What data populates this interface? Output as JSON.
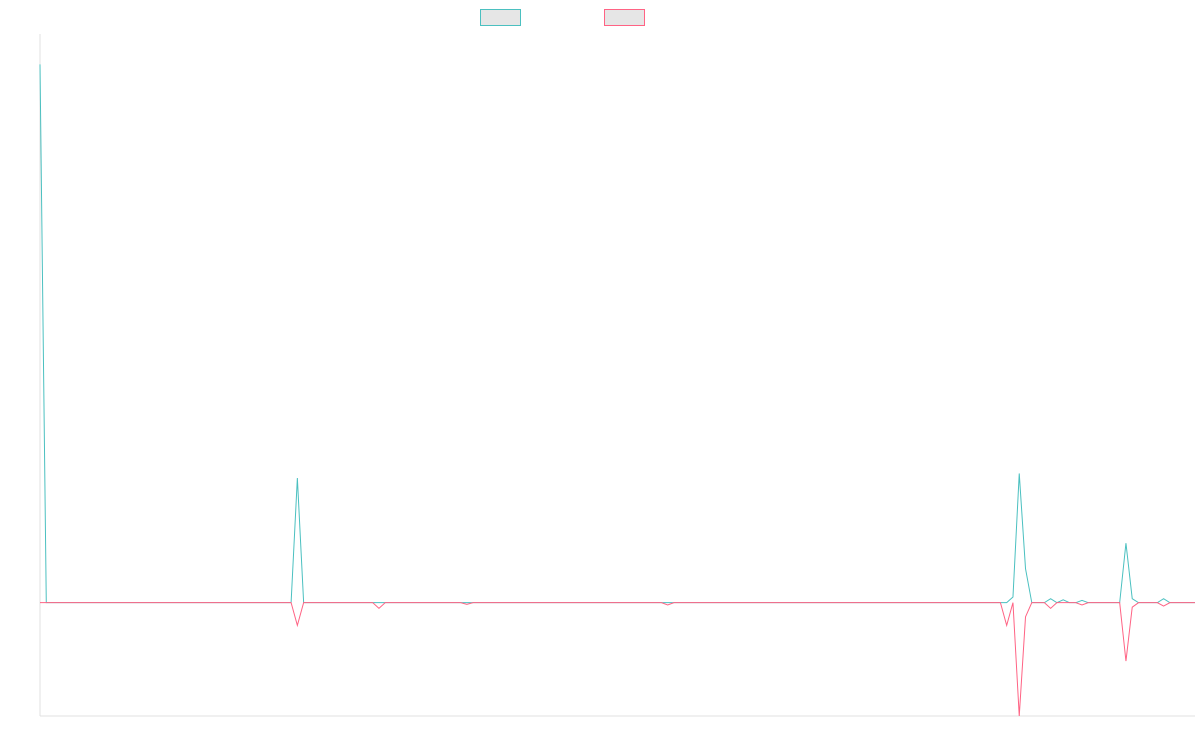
{
  "chart_data": {
    "type": "line",
    "title": "",
    "xlabel": "",
    "ylabel": "",
    "grid": false,
    "legend_position": "top-center",
    "ylim": [
      -20,
      100
    ],
    "n_points": 185,
    "series": [
      {
        "name": "",
        "color": "#4bc0c0",
        "fill": "#e6e6e6",
        "points": [
          [
            0,
            95
          ],
          [
            1,
            0
          ],
          [
            7,
            0
          ],
          [
            40,
            0
          ],
          [
            41,
            22
          ],
          [
            42,
            0
          ],
          [
            101,
            0
          ],
          [
            154,
            0
          ],
          [
            155,
            1
          ],
          [
            156,
            22.8
          ],
          [
            157,
            6
          ],
          [
            158,
            0
          ],
          [
            160,
            0
          ],
          [
            161,
            0.7
          ],
          [
            162,
            0
          ],
          [
            163,
            0.5
          ],
          [
            164,
            0
          ],
          [
            165,
            0
          ],
          [
            166,
            0.4
          ],
          [
            167,
            0
          ],
          [
            172,
            0
          ],
          [
            173,
            10.5
          ],
          [
            174,
            0.7
          ],
          [
            175,
            0
          ],
          [
            178,
            0
          ],
          [
            179,
            0.7
          ],
          [
            180,
            0
          ],
          [
            184,
            0
          ]
        ]
      },
      {
        "name": "",
        "color": "#ff6384",
        "fill": "#e6e6e6",
        "points": [
          [
            0,
            0
          ],
          [
            7,
            0
          ],
          [
            40,
            0
          ],
          [
            41,
            -4
          ],
          [
            42,
            0
          ],
          [
            53,
            0
          ],
          [
            54,
            -1
          ],
          [
            55,
            0
          ],
          [
            67,
            0
          ],
          [
            68,
            -0.3
          ],
          [
            69,
            0
          ],
          [
            99,
            0
          ],
          [
            100,
            -0.4
          ],
          [
            101,
            0
          ],
          [
            153,
            0
          ],
          [
            154,
            -4
          ],
          [
            155,
            0
          ],
          [
            156,
            -20
          ],
          [
            157,
            -2.5
          ],
          [
            158,
            0
          ],
          [
            160,
            0
          ],
          [
            161,
            -1
          ],
          [
            162,
            0
          ],
          [
            165,
            0
          ],
          [
            166,
            -0.4
          ],
          [
            167,
            0
          ],
          [
            172,
            0
          ],
          [
            173,
            -10.3
          ],
          [
            174,
            -0.8
          ],
          [
            175,
            0
          ],
          [
            178,
            0
          ],
          [
            179,
            -0.6
          ],
          [
            180,
            0
          ],
          [
            184,
            0
          ]
        ]
      }
    ]
  }
}
